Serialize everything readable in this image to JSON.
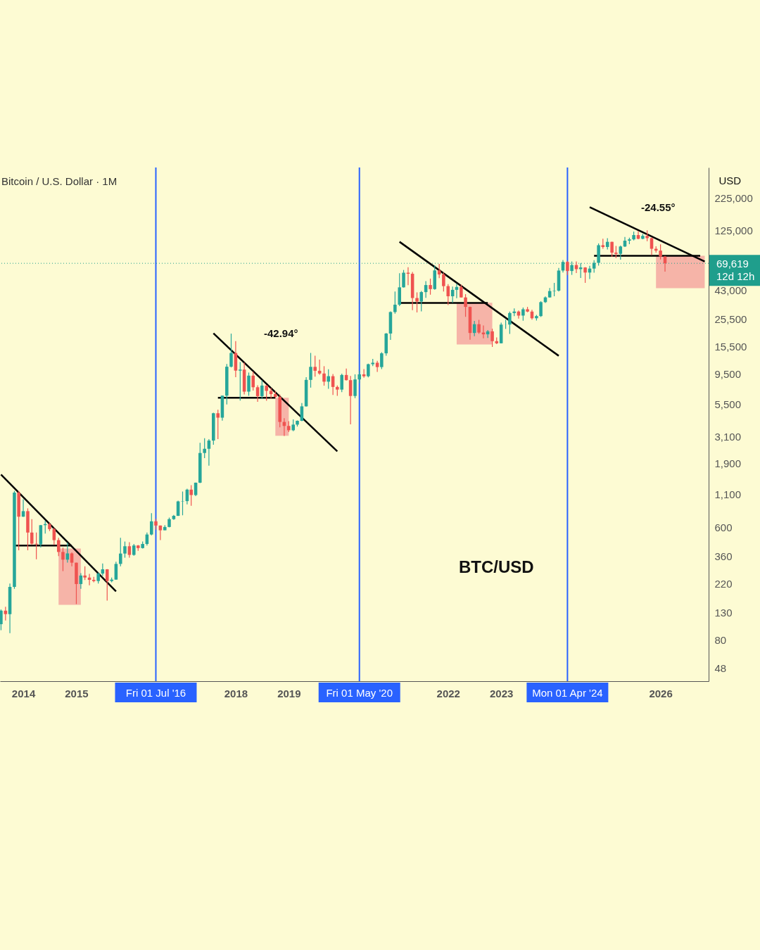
{
  "chart_data": {
    "type": "candlestick",
    "title": "Bitcoin / U.S. Dollar · 1M",
    "ylabel": "USD",
    "x": [
      "2013-08",
      "2013-09",
      "2013-10",
      "2013-11",
      "2013-12",
      "2014-01",
      "2014-02",
      "2014-03",
      "2014-04",
      "2014-05",
      "2014-06",
      "2014-07",
      "2014-08",
      "2014-09",
      "2014-10",
      "2014-11",
      "2014-12",
      "2015-01",
      "2015-02",
      "2015-03",
      "2015-04",
      "2015-05",
      "2015-06",
      "2015-07",
      "2015-08",
      "2015-09",
      "2015-10",
      "2015-11",
      "2015-12",
      "2016-01",
      "2016-02",
      "2016-03",
      "2016-04",
      "2016-05",
      "2016-06",
      "2016-07",
      "2016-08",
      "2016-09",
      "2016-10",
      "2016-11",
      "2016-12",
      "2017-01",
      "2017-02",
      "2017-03",
      "2017-04",
      "2017-05",
      "2017-06",
      "2017-07",
      "2017-08",
      "2017-09",
      "2017-10",
      "2017-11",
      "2017-12",
      "2018-01",
      "2018-02",
      "2018-03",
      "2018-04",
      "2018-05",
      "2018-06",
      "2018-07",
      "2018-08",
      "2018-09",
      "2018-10",
      "2018-11",
      "2018-12",
      "2019-01",
      "2019-02",
      "2019-03",
      "2019-04",
      "2019-05",
      "2019-06",
      "2019-07",
      "2019-08",
      "2019-09",
      "2019-10",
      "2019-11",
      "2019-12",
      "2020-01",
      "2020-02",
      "2020-03",
      "2020-04",
      "2020-05",
      "2020-06",
      "2020-07",
      "2020-08",
      "2020-09",
      "2020-10",
      "2020-11",
      "2020-12",
      "2021-01",
      "2021-02",
      "2021-03",
      "2021-04",
      "2021-05",
      "2021-06",
      "2021-07",
      "2021-08",
      "2021-09",
      "2021-10",
      "2021-11",
      "2021-12",
      "2022-01",
      "2022-02",
      "2022-03",
      "2022-04",
      "2022-05",
      "2022-06",
      "2022-07",
      "2022-08",
      "2022-09",
      "2022-10",
      "2022-11",
      "2022-12",
      "2023-01",
      "2023-02",
      "2023-03",
      "2023-04",
      "2023-05",
      "2023-06",
      "2023-07",
      "2023-08",
      "2023-09",
      "2023-10",
      "2023-11",
      "2023-12",
      "2024-01",
      "2024-02",
      "2024-03",
      "2024-04",
      "2024-05",
      "2024-06",
      "2024-07",
      "2024-08",
      "2024-09",
      "2024-10",
      "2024-11",
      "2024-12",
      "2025-01",
      "2025-02",
      "2025-03",
      "2025-04",
      "2025-05",
      "2025-06",
      "2025-07",
      "2025-08",
      "2025-09",
      "2025-10",
      "2025-11",
      "2025-12",
      "2026-01",
      "2026-02"
    ],
    "ohlc": [
      [
        106,
        138,
        95,
        135
      ],
      [
        135,
        145,
        113,
        127
      ],
      [
        127,
        220,
        90,
        207
      ],
      [
        207,
        1163,
        200,
        1129
      ],
      [
        1129,
        1160,
        400,
        732
      ],
      [
        732,
        1000,
        730,
        808
      ],
      [
        808,
        850,
        400,
        550
      ],
      [
        550,
        700,
        440,
        450
      ],
      [
        450,
        550,
        340,
        445
      ],
      [
        445,
        630,
        420,
        628
      ],
      [
        628,
        680,
        540,
        640
      ],
      [
        640,
        660,
        565,
        585
      ],
      [
        585,
        600,
        440,
        480
      ],
      [
        480,
        500,
        360,
        388
      ],
      [
        388,
        420,
        275,
        338
      ],
      [
        338,
        460,
        320,
        378
      ],
      [
        378,
        385,
        300,
        320
      ],
      [
        320,
        320,
        152,
        218
      ],
      [
        218,
        265,
        200,
        254
      ],
      [
        254,
        300,
        234,
        245
      ],
      [
        245,
        262,
        213,
        235
      ],
      [
        235,
        248,
        225,
        230
      ],
      [
        230,
        268,
        220,
        263
      ],
      [
        263,
        315,
        253,
        284
      ],
      [
        284,
        285,
        162,
        230
      ],
      [
        230,
        245,
        225,
        236
      ],
      [
        236,
        325,
        236,
        313
      ],
      [
        313,
        500,
        300,
        377
      ],
      [
        377,
        468,
        350,
        430
      ],
      [
        430,
        462,
        350,
        368
      ],
      [
        368,
        448,
        363,
        436
      ],
      [
        436,
        440,
        396,
        416
      ],
      [
        416,
        468,
        413,
        448
      ],
      [
        448,
        550,
        435,
        531
      ],
      [
        531,
        780,
        523,
        673
      ],
      [
        673,
        704,
        580,
        624
      ],
      [
        624,
        625,
        480,
        573
      ],
      [
        573,
        628,
        573,
        608
      ],
      [
        608,
        720,
        604,
        700
      ],
      [
        700,
        755,
        690,
        743
      ],
      [
        743,
        975,
        740,
        963
      ],
      [
        963,
        1150,
        750,
        968
      ],
      [
        968,
        1210,
        913,
        1190
      ],
      [
        1190,
        1290,
        890,
        1080
      ],
      [
        1080,
        1350,
        1060,
        1348
      ],
      [
        1348,
        2760,
        1340,
        2300
      ],
      [
        2300,
        3000,
        2100,
        2480
      ],
      [
        2480,
        2950,
        1830,
        2875
      ],
      [
        2875,
        4750,
        2670,
        4700
      ],
      [
        4700,
        5000,
        2950,
        4340
      ],
      [
        4340,
        6470,
        4110,
        6450
      ],
      [
        6450,
        11400,
        5500,
        10850
      ],
      [
        10850,
        19666,
        10700,
        13880
      ],
      [
        13880,
        17200,
        9000,
        10110
      ],
      [
        10110,
        11800,
        5900,
        10300
      ],
      [
        10300,
        11700,
        6600,
        6930
      ],
      [
        6930,
        9770,
        6430,
        9240
      ],
      [
        9240,
        9950,
        7060,
        7500
      ],
      [
        7500,
        7760,
        5780,
        6390
      ],
      [
        6390,
        8500,
        6070,
        7730
      ],
      [
        7730,
        7760,
        5880,
        7030
      ],
      [
        7030,
        7400,
        6100,
        6630
      ],
      [
        6630,
        7000,
        6200,
        6300
      ],
      [
        6300,
        6570,
        3650,
        4020
      ],
      [
        4020,
        4300,
        3120,
        3740
      ],
      [
        3740,
        4080,
        3350,
        3460
      ],
      [
        3460,
        4200,
        3400,
        3830
      ],
      [
        3830,
        4130,
        3700,
        4100
      ],
      [
        4100,
        5640,
        4070,
        5320
      ],
      [
        5320,
        9000,
        5300,
        8560
      ],
      [
        8560,
        13900,
        7450,
        10820
      ],
      [
        10820,
        13200,
        9070,
        10080
      ],
      [
        10080,
        12330,
        9400,
        9600
      ],
      [
        9600,
        10950,
        7710,
        8290
      ],
      [
        8290,
        10350,
        7300,
        9150
      ],
      [
        9150,
        9500,
        6520,
        7540
      ],
      [
        7540,
        7750,
        6430,
        7190
      ],
      [
        7190,
        9580,
        6860,
        9350
      ],
      [
        9350,
        10500,
        8450,
        8520
      ],
      [
        8520,
        9200,
        3850,
        6410
      ],
      [
        6410,
        9460,
        6160,
        8630
      ],
      [
        8630,
        10080,
        8100,
        9450
      ],
      [
        9450,
        10380,
        8900,
        9140
      ],
      [
        9140,
        11450,
        8950,
        11350
      ],
      [
        11350,
        12470,
        10970,
        11650
      ],
      [
        11650,
        12060,
        9880,
        10780
      ],
      [
        10780,
        14100,
        10400,
        13800
      ],
      [
        13800,
        19850,
        13200,
        19700
      ],
      [
        19700,
        29300,
        17580,
        28990
      ],
      [
        28990,
        41950,
        28130,
        33100
      ],
      [
        33100,
        58350,
        32300,
        45200
      ],
      [
        45200,
        61780,
        45000,
        58800
      ],
      [
        58800,
        64900,
        47000,
        57700
      ],
      [
        57700,
        59600,
        30000,
        37300
      ],
      [
        37300,
        41300,
        28800,
        35040
      ],
      [
        35040,
        42400,
        29300,
        41500
      ],
      [
        41500,
        50500,
        37400,
        47100
      ],
      [
        47100,
        52900,
        39600,
        43800
      ],
      [
        43800,
        67000,
        43300,
        61300
      ],
      [
        61300,
        69000,
        53300,
        57000
      ],
      [
        57000,
        59100,
        42000,
        46200
      ],
      [
        46200,
        47900,
        32900,
        38500
      ],
      [
        38500,
        45800,
        34300,
        43200
      ],
      [
        43200,
        48200,
        37200,
        45500
      ],
      [
        45500,
        47400,
        37700,
        37700
      ],
      [
        37700,
        40000,
        26600,
        31800
      ],
      [
        31800,
        31900,
        17600,
        19900
      ],
      [
        19900,
        24700,
        18800,
        23300
      ],
      [
        23300,
        25200,
        19600,
        20050
      ],
      [
        20050,
        22800,
        18100,
        19420
      ],
      [
        19420,
        21000,
        18200,
        20490
      ],
      [
        20490,
        21480,
        15480,
        17170
      ],
      [
        17170,
        18390,
        16270,
        16530
      ],
      [
        16530,
        23950,
        16500,
        23130
      ],
      [
        23130,
        25270,
        21400,
        23150
      ],
      [
        23150,
        29200,
        19550,
        28470
      ],
      [
        28470,
        31000,
        26900,
        29250
      ],
      [
        29250,
        29830,
        25800,
        27200
      ],
      [
        27200,
        31440,
        24800,
        30470
      ],
      [
        30470,
        31800,
        28880,
        29230
      ],
      [
        29230,
        30200,
        25300,
        25930
      ],
      [
        25930,
        27500,
        24900,
        26960
      ],
      [
        26960,
        35200,
        26540,
        34650
      ],
      [
        34650,
        38430,
        34100,
        37720
      ],
      [
        37720,
        44700,
        37600,
        42280
      ],
      [
        42280,
        48970,
        38500,
        42580
      ],
      [
        42580,
        64000,
        41880,
        61130
      ],
      [
        61130,
        73800,
        59000,
        71330
      ],
      [
        71330,
        72800,
        56500,
        60640
      ],
      [
        60640,
        71950,
        56550,
        67490
      ],
      [
        67490,
        71950,
        58400,
        62700
      ],
      [
        62700,
        70000,
        53500,
        64630
      ],
      [
        64630,
        65000,
        49000,
        58970
      ],
      [
        58970,
        66500,
        52550,
        63330
      ],
      [
        63330,
        73600,
        58900,
        70220
      ],
      [
        70220,
        99600,
        66800,
        96400
      ],
      [
        96400,
        108300,
        90500,
        93400
      ],
      [
        93400,
        109400,
        89200,
        102400
      ],
      [
        102400,
        102700,
        78200,
        84350
      ],
      [
        84350,
        95000,
        76600,
        82550
      ],
      [
        82550,
        95800,
        74400,
        94200
      ],
      [
        94200,
        111900,
        93400,
        104600
      ],
      [
        104600,
        110500,
        98200,
        107100
      ],
      [
        107100,
        123200,
        105100,
        115700
      ],
      [
        115700,
        124500,
        107300,
        108200
      ],
      [
        108200,
        117900,
        107300,
        114000
      ],
      [
        114000,
        126200,
        103500,
        109500
      ],
      [
        109500,
        110600,
        80600,
        90400
      ],
      [
        90400,
        94600,
        84400,
        87500
      ],
      [
        87500,
        97900,
        74500,
        78600
      ],
      [
        78600,
        79400,
        60000,
        69619
      ]
    ],
    "series": [
      {
        "type": "line",
        "x": [
          "2013-08",
          "2015-10"
        ],
        "values": [
          1560,
          191
        ],
        "color": "#000000"
      },
      {
        "type": "line",
        "x": [
          "2013-11",
          "2014-12"
        ],
        "values": [
          435,
          435
        ],
        "color": "#000000"
      },
      {
        "type": "line",
        "x": [
          "2017-08",
          "2019-12"
        ],
        "values": [
          19800,
          2370
        ],
        "color": "#000000"
      },
      {
        "type": "line",
        "x": [
          "2017-09",
          "2018-10"
        ],
        "values": [
          6200,
          6200
        ],
        "color": "#000000"
      },
      {
        "type": "line",
        "x": [
          "2021-02",
          "2024-02"
        ],
        "values": [
          102500,
          13200
        ],
        "color": "#000000"
      },
      {
        "type": "line",
        "x": [
          "2021-02",
          "2022-10"
        ],
        "values": [
          34100,
          34100
        ],
        "color": "#000000"
      },
      {
        "type": "line",
        "x": [
          "2024-09",
          "2026-11"
        ],
        "values": [
          191000,
          71900
        ],
        "color": "#000000"
      },
      {
        "type": "line",
        "x": [
          "2024-10",
          "2026-10"
        ],
        "values": [
          79600,
          79600
        ],
        "color": "#000000"
      },
      {
        "type": "line",
        "x": [
          "2014-09",
          "2015-02"
        ],
        "values": [
          null,
          null
        ],
        "lower": [
          150,
          150
        ],
        "upper": [
          413,
          413
        ],
        "color": "#f4a7a0"
      },
      {
        "type": "line",
        "x": [
          "2018-10",
          "2019-01"
        ],
        "values": [
          null,
          null
        ],
        "lower": [
          3130,
          3130
        ],
        "upper": [
          6200,
          6200
        ],
        "color": "#f4a7a0"
      },
      {
        "type": "line",
        "x": [
          "2022-03",
          "2022-11"
        ],
        "values": [
          null,
          null
        ],
        "lower": [
          16200,
          16200
        ],
        "upper": [
          34300,
          34300
        ],
        "color": "#f4a7a0"
      },
      {
        "type": "line",
        "x": [
          "2025-12",
          "2026-11"
        ],
        "values": [
          null,
          null
        ],
        "lower": [
          44600,
          44600
        ],
        "upper": [
          79600,
          79600
        ],
        "color": "#f4a7a0"
      }
    ],
    "log": true,
    "ylim": [
      38,
      390000
    ],
    "yticks": [
      {
        "value": 225000,
        "label": "225,000"
      },
      {
        "value": 125000,
        "label": "125,000"
      },
      {
        "value": 43000,
        "label": "43,000"
      },
      {
        "value": 25500,
        "label": "25,500"
      },
      {
        "value": 15500,
        "label": "15,500"
      },
      {
        "value": 9500,
        "label": "9,500"
      },
      {
        "value": 5500,
        "label": "5,500"
      },
      {
        "value": 3100,
        "label": "3,100"
      },
      {
        "value": 1900,
        "label": "1,900"
      },
      {
        "value": 1100,
        "label": "1,100"
      },
      600,
      360,
      220,
      130,
      80,
      48
    ],
    "xlim": [
      "2013-07-25",
      "2026-11-28"
    ],
    "xticks": [
      "2014",
      "2015",
      "2018",
      "2019",
      "2022",
      "2023",
      "2026"
    ],
    "ref_lines": [
      {
        "axis": "x",
        "value": "2016-07-01",
        "label": "Fri 01 Jul '16",
        "color": "#2962ff"
      },
      {
        "axis": "x",
        "value": "2020-05-01",
        "label": "Fri 01 May '20",
        "color": "#2962ff"
      },
      {
        "axis": "x",
        "value": "2024-04-01",
        "label": "Mon 01 Apr '24",
        "color": "#2962ff"
      },
      {
        "axis": "y",
        "value": 69619,
        "label": "69,619\n12d 12h",
        "color": "#1f9e8c",
        "line_style": "dotted"
      }
    ],
    "annotations": [
      "-42.94°",
      "-24.55°",
      "BTC/USD"
    ],
    "tick_labels": true
  }
}
